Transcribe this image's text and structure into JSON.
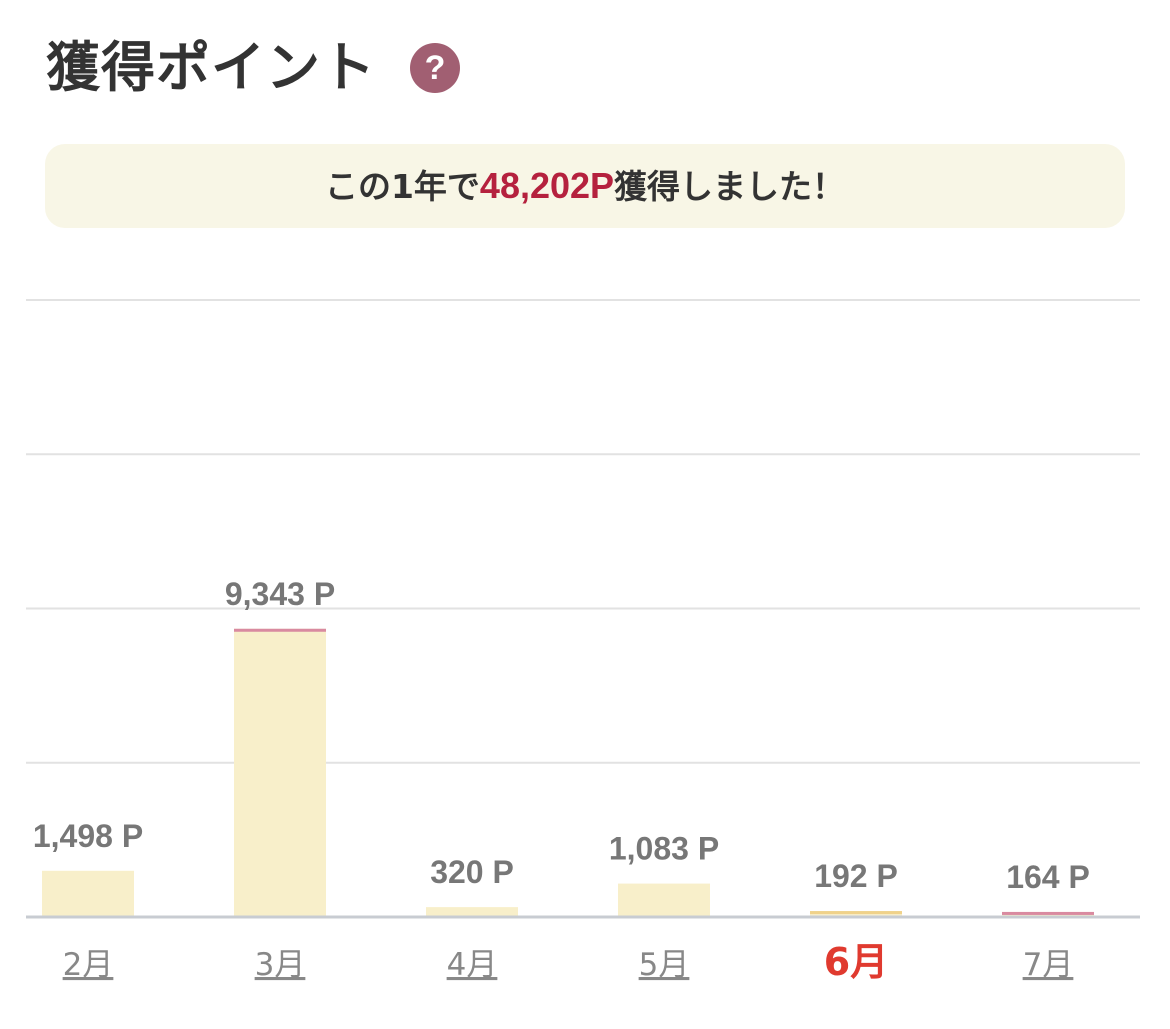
{
  "header": {
    "title": "獲得ポイント",
    "help_icon": "question-mark-icon",
    "help_glyph": "?"
  },
  "summary": {
    "prefix": "この1年で",
    "total": "48,202P",
    "suffix": "獲得しました！"
  },
  "colors": {
    "bar": "#f8efca",
    "bar_top_pink": "#d98aa0",
    "bar_top_gold": "#f0d28a",
    "grid": "#e2e2e2",
    "axis": "#c8ccd2",
    "value_label": "#777777",
    "month_label": "#888888",
    "selected_month": "#e03a2f",
    "help_icon": "#a15f72",
    "summary_bg": "#f8f6e6",
    "summary_total": "#b5213e"
  },
  "chart_data": {
    "type": "bar",
    "categories": [
      "2月",
      "3月",
      "4月",
      "5月",
      "6月",
      "7月"
    ],
    "values": [
      1498,
      9343,
      320,
      1083,
      192,
      164
    ],
    "value_labels": [
      "1,498 P",
      "9,343 P",
      "320 P",
      "1,083 P",
      "192 P",
      "164 P"
    ],
    "selected_category": "6月",
    "bar_top_accent": [
      "none",
      "pink",
      "none",
      "none",
      "gold",
      "pink"
    ],
    "ylim": [
      0,
      20000
    ],
    "y_gridlines": [
      5000,
      10000,
      15000,
      20000
    ],
    "grid": true,
    "title": "",
    "xlabel": "",
    "ylabel": ""
  }
}
